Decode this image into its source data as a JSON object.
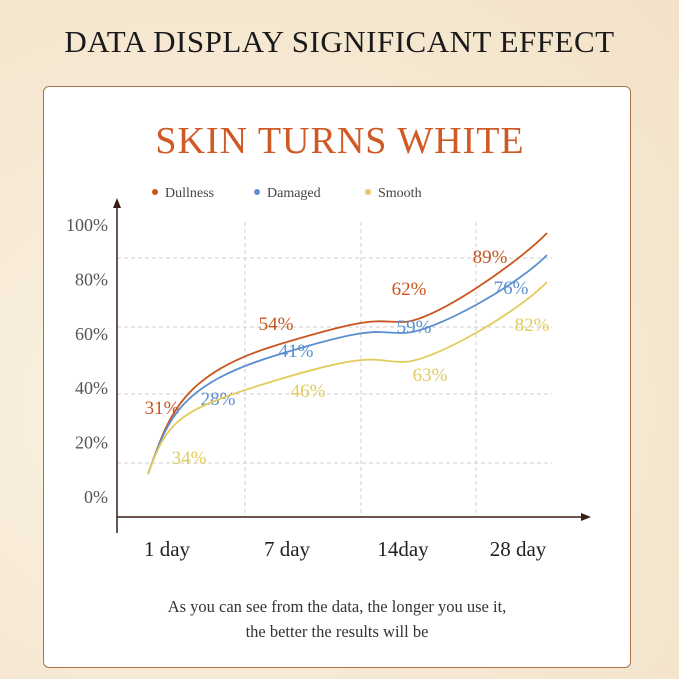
{
  "header": {
    "title": "DATA DISPLAY SIGNIFICANT EFFECT"
  },
  "colors": {
    "dullness": "#c9541d",
    "damaged": "#5b8fcf",
    "smooth": "#e3cb5c",
    "title": "#d05a25",
    "axis": "#3a1f16"
  },
  "chart_data": {
    "type": "line",
    "title": "SKIN TURNS WHITE",
    "categories": [
      "1 day",
      "7 day",
      "14day",
      "28 day"
    ],
    "y_ticks": [
      "0%",
      "20%",
      "40%",
      "60%",
      "80%",
      "100%"
    ],
    "ylim": [
      0,
      100
    ],
    "grid": true,
    "legend_position": "top",
    "series": [
      {
        "name": "Dullness",
        "color_key": "dullness",
        "values": [
          31,
          54,
          62,
          89
        ],
        "labels": [
          "31%",
          "54%",
          "62%",
          "89%"
        ]
      },
      {
        "name": "Damaged",
        "color_key": "damaged",
        "values": [
          28,
          41,
          59,
          76
        ],
        "labels": [
          "28%",
          "41%",
          "59%",
          "76%"
        ]
      },
      {
        "name": "Smooth",
        "color_key": "smooth",
        "values": [
          34,
          46,
          63,
          82
        ],
        "labels": [
          "34%",
          "46%",
          "63%",
          "82%"
        ]
      }
    ]
  },
  "footer": {
    "line1": "As you can see from the data, the longer you use it,",
    "line2": "the better the results will be"
  }
}
